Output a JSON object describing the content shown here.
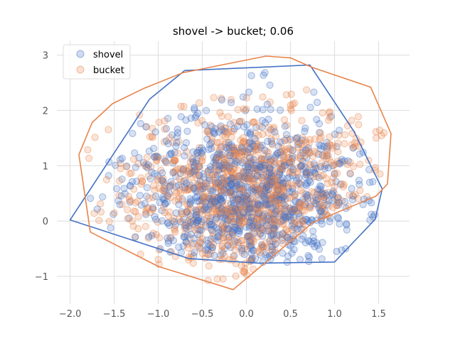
{
  "chart_data": {
    "type": "scatter",
    "title": "shovel -> bucket; 0.06",
    "xlabel": "",
    "ylabel": "",
    "xlim": [
      -2.15,
      1.85
    ],
    "ylim": [
      -1.5,
      3.25
    ],
    "xticks": [
      -2.0,
      -1.5,
      -1.0,
      -0.5,
      0.0,
      0.5,
      1.0,
      1.5
    ],
    "xtick_labels": [
      "−2.0",
      "−1.5",
      "−1.0",
      "−0.5",
      "0.0",
      "0.5",
      "1.0",
      "1.5"
    ],
    "yticks": [
      -1,
      0,
      1,
      2,
      3
    ],
    "ytick_labels": [
      "−1",
      "0",
      "1",
      "2",
      "3"
    ],
    "grid": true,
    "legend_position": "top-left",
    "series": [
      {
        "name": "shovel",
        "color": "#4472c4",
        "point_count": 1000,
        "center": [
          0.0,
          0.45
        ],
        "spread": [
          0.65,
          0.75
        ],
        "hull": [
          [
            -2.0,
            0.02
          ],
          [
            -0.65,
            -0.68
          ],
          [
            0.15,
            -0.76
          ],
          [
            1.0,
            -0.74
          ],
          [
            1.46,
            0.03
          ],
          [
            1.54,
            0.58
          ],
          [
            1.22,
            1.62
          ],
          [
            0.72,
            2.82
          ],
          [
            -0.7,
            2.72
          ],
          [
            -1.1,
            2.2
          ]
        ]
      },
      {
        "name": "bucket",
        "color": "#e8844c",
        "point_count": 1000,
        "center": [
          0.05,
          0.55
        ],
        "spread": [
          0.7,
          0.75
        ],
        "hull": [
          [
            -1.75,
            1.78
          ],
          [
            -1.52,
            2.12
          ],
          [
            -1.16,
            2.4
          ],
          [
            -0.72,
            2.68
          ],
          [
            0.22,
            2.98
          ],
          [
            0.5,
            2.95
          ],
          [
            0.74,
            2.78
          ],
          [
            1.41,
            2.42
          ],
          [
            1.64,
            1.58
          ],
          [
            1.6,
            0.67
          ],
          [
            1.47,
            0.45
          ],
          [
            0.75,
            -0.03
          ],
          [
            -0.15,
            -1.24
          ],
          [
            -1.0,
            -0.82
          ],
          [
            -1.77,
            -0.2
          ],
          [
            -1.9,
            1.2
          ]
        ]
      }
    ]
  }
}
